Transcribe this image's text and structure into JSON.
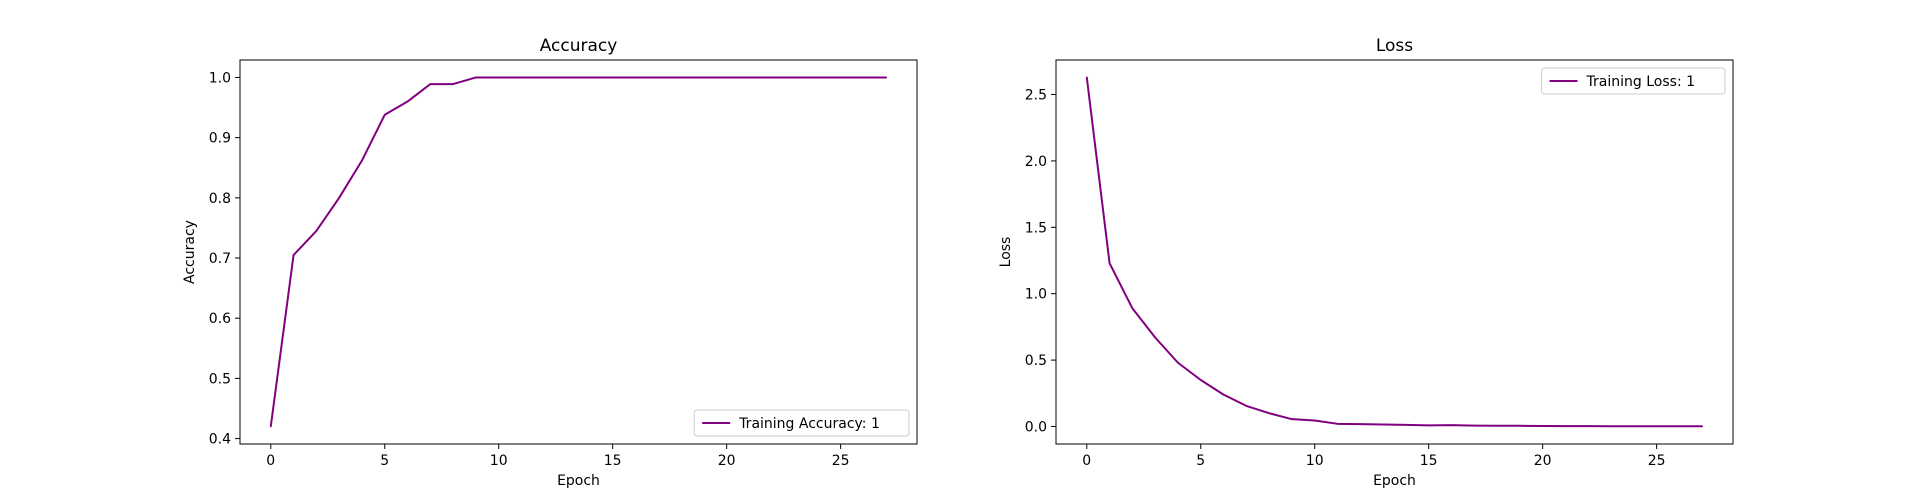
{
  "chart_data": [
    {
      "type": "line",
      "title": "Accuracy",
      "xlabel": "Epoch",
      "ylabel": "Accuracy",
      "xlim": [
        -1.35,
        28.35
      ],
      "ylim": [
        0.391,
        1.029
      ],
      "xticks": [
        0,
        5,
        10,
        15,
        20,
        25
      ],
      "yticks": [
        0.4,
        0.5,
        0.6,
        0.7,
        0.8,
        0.9,
        1.0
      ],
      "ytick_labels": [
        "0.4",
        "0.5",
        "0.6",
        "0.7",
        "0.8",
        "0.9",
        "1.0"
      ],
      "grid": false,
      "legend_position": "lower-right",
      "series": [
        {
          "name": "Training Accuracy: 1",
          "color": "#800080",
          "x": [
            0,
            1,
            2,
            3,
            4,
            5,
            6,
            7,
            8,
            9,
            10,
            11,
            12,
            13,
            14,
            15,
            16,
            17,
            18,
            19,
            20,
            21,
            22,
            23,
            24,
            25,
            26,
            27
          ],
          "values": [
            0.42,
            0.705,
            0.745,
            0.8,
            0.862,
            0.938,
            0.96,
            0.989,
            0.989,
            1.0,
            1.0,
            1.0,
            1.0,
            1.0,
            1.0,
            1.0,
            1.0,
            1.0,
            1.0,
            1.0,
            1.0,
            1.0,
            1.0,
            1.0,
            1.0,
            1.0,
            1.0,
            1.0
          ]
        }
      ]
    },
    {
      "type": "line",
      "title": "Loss",
      "xlabel": "Epoch",
      "ylabel": "Loss",
      "xlim": [
        -1.35,
        28.35
      ],
      "ylim": [
        -0.132,
        2.76
      ],
      "xticks": [
        0,
        5,
        10,
        15,
        20,
        25
      ],
      "yticks": [
        0.0,
        0.5,
        1.0,
        1.5,
        2.0,
        2.5
      ],
      "ytick_labels": [
        "0.0",
        "0.5",
        "1.0",
        "1.5",
        "2.0",
        "2.5"
      ],
      "grid": false,
      "legend_position": "upper-right",
      "series": [
        {
          "name": "Training Loss: 1",
          "color": "#800080",
          "x": [
            0,
            1,
            2,
            3,
            4,
            5,
            6,
            7,
            8,
            9,
            10,
            11,
            12,
            13,
            14,
            15,
            16,
            17,
            18,
            19,
            20,
            21,
            22,
            23,
            24,
            25,
            26,
            27
          ],
          "values": [
            2.63,
            1.23,
            0.89,
            0.67,
            0.48,
            0.35,
            0.24,
            0.155,
            0.1,
            0.055,
            0.045,
            0.02,
            0.018,
            0.015,
            0.012,
            0.008,
            0.01,
            0.006,
            0.005,
            0.005,
            0.004,
            0.003,
            0.003,
            0.002,
            0.002,
            0.002,
            0.002,
            0.002
          ]
        }
      ]
    }
  ]
}
